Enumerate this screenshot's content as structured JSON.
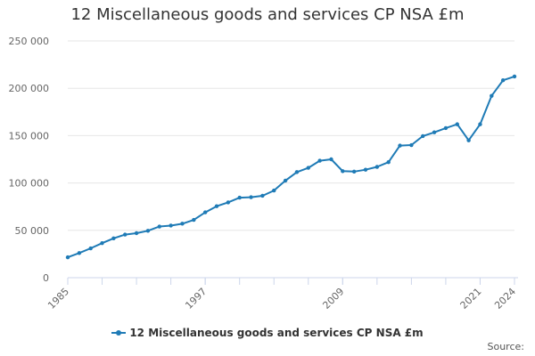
{
  "chart_data": {
    "type": "line",
    "title": "12 Miscellaneous goods and services CP NSA £m",
    "xlabel": "",
    "ylabel": "",
    "xlim": [
      1985,
      2024
    ],
    "ylim": [
      0,
      250000
    ],
    "x_ticks": [
      1985,
      1997,
      2009,
      2021,
      2024
    ],
    "x_tick_labels": [
      "1985",
      "1997",
      "2009",
      "2021",
      "2024"
    ],
    "y_ticks": [
      0,
      50000,
      100000,
      150000,
      200000,
      250000
    ],
    "y_tick_labels": [
      "0",
      "50 000",
      "100 000",
      "150 000",
      "200 000",
      "250 000"
    ],
    "grid": "horizontal",
    "legend": "bottom-center",
    "series": [
      {
        "name": "12 Miscellaneous goods and services CP NSA £m",
        "color": "#1f7bb6",
        "x": [
          1985,
          1986,
          1987,
          1988,
          1989,
          1990,
          1991,
          1992,
          1993,
          1994,
          1995,
          1996,
          1997,
          1998,
          1999,
          2000,
          2001,
          2002,
          2003,
          2004,
          2005,
          2006,
          2007,
          2008,
          2009,
          2010,
          2011,
          2012,
          2013,
          2014,
          2015,
          2016,
          2017,
          2018,
          2019,
          2020,
          2021,
          2022,
          2023,
          2024
        ],
        "values": [
          21500,
          26000,
          31000,
          36500,
          41500,
          45500,
          47000,
          49500,
          54000,
          55000,
          57000,
          61000,
          69000,
          75500,
          79500,
          84500,
          85000,
          86500,
          92000,
          102500,
          111500,
          116000,
          123500,
          125000,
          112500,
          112000,
          114000,
          117000,
          122000,
          139500,
          140000,
          149500,
          153500,
          158000,
          162000,
          145000,
          162000,
          192000,
          208500,
          212500
        ]
      }
    ]
  },
  "credits": "Source:"
}
